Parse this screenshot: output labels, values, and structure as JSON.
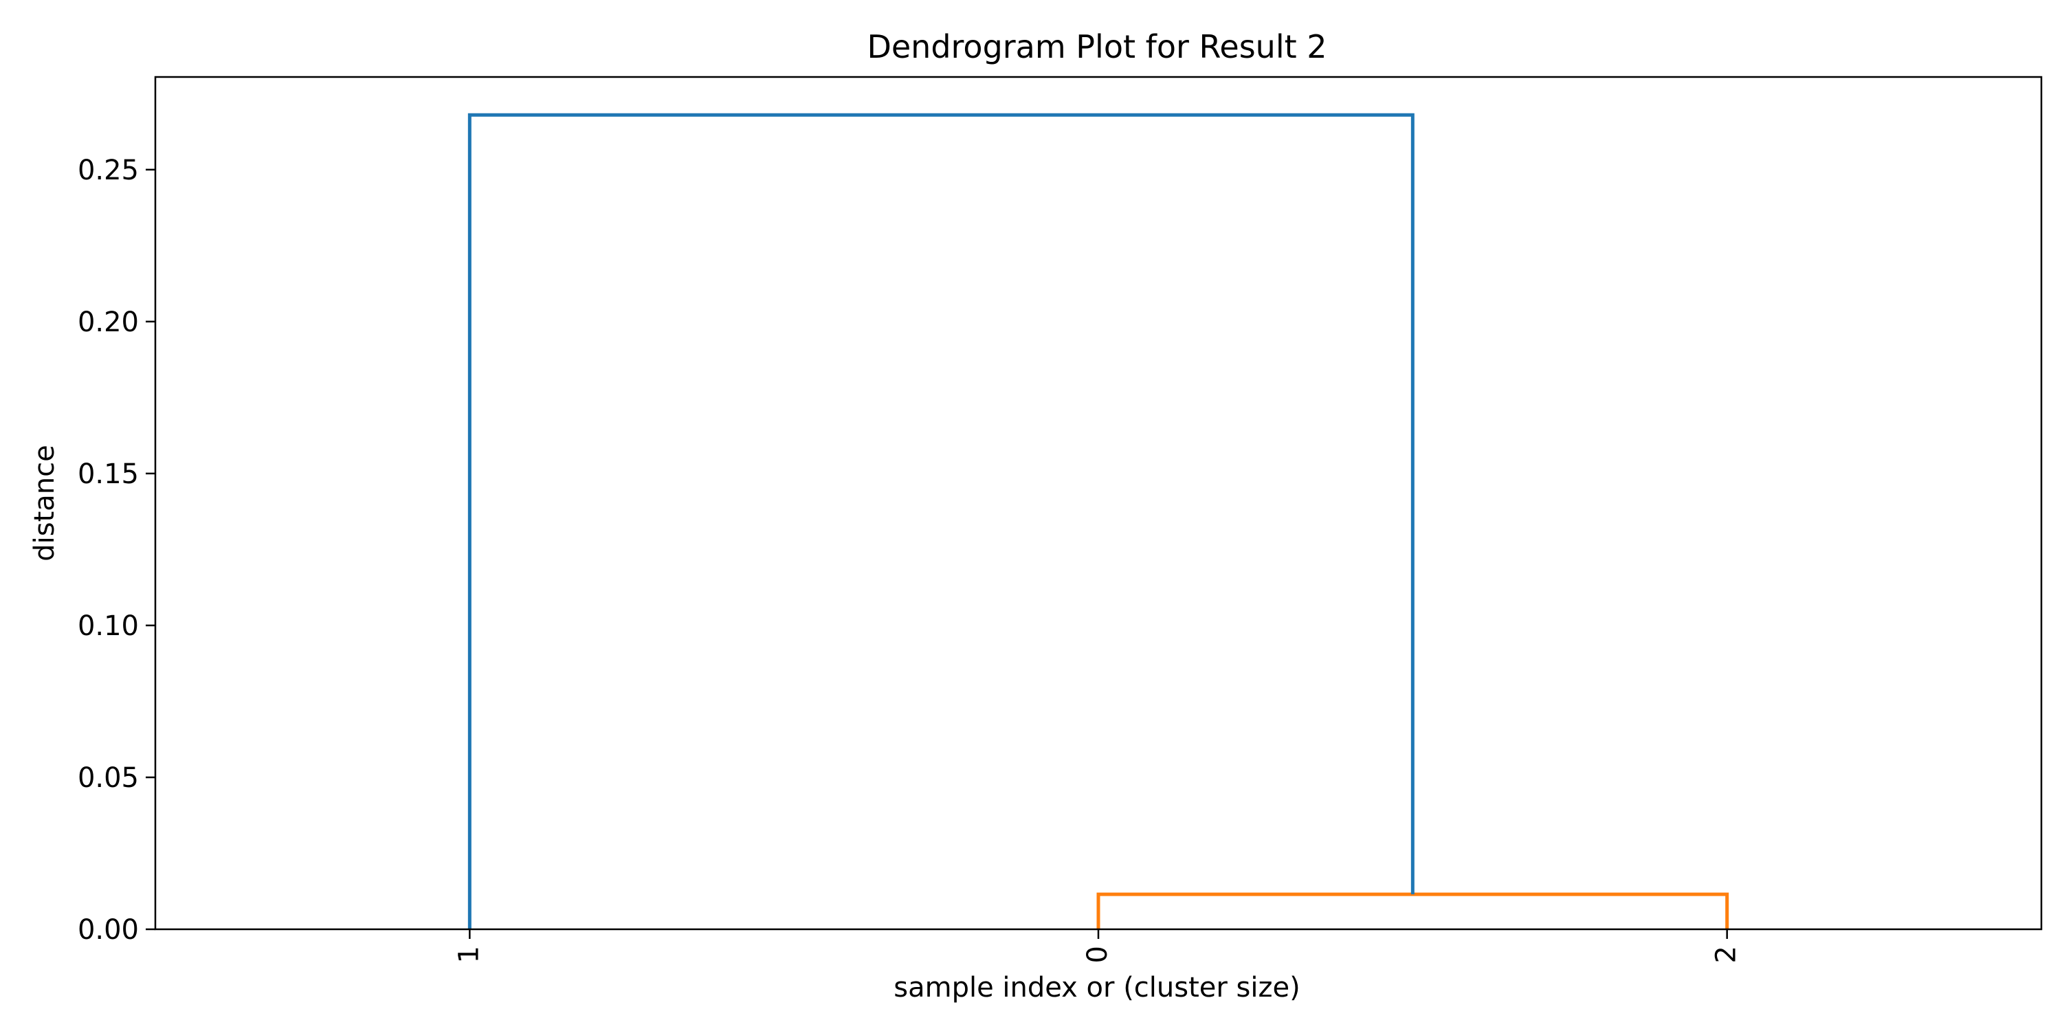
{
  "chart_data": {
    "type": "dendrogram",
    "title": "Dendrogram Plot for Result 2",
    "xlabel": "sample index or (cluster size)",
    "ylabel": "distance",
    "leaves": [
      "1",
      "0",
      "2"
    ],
    "ylim": [
      0,
      0.2805
    ],
    "yticks": [
      0.0,
      0.05,
      0.1,
      0.15,
      0.2,
      0.25
    ],
    "ytick_labels": [
      "0.00",
      "0.05",
      "0.10",
      "0.15",
      "0.20",
      "0.25"
    ],
    "links": [
      {
        "name": "merge-0-2",
        "left_x": 1,
        "right_x": 2,
        "left_height": 0,
        "right_height": 0,
        "height": 0.0115,
        "color": "#ff7f0e"
      },
      {
        "name": "merge-root",
        "left_x": 0,
        "right_x": 1.5,
        "left_height": 0,
        "right_height": 0.0115,
        "height": 0.268,
        "color": "#1f77b4"
      }
    ],
    "grid": false,
    "legend": "none"
  }
}
